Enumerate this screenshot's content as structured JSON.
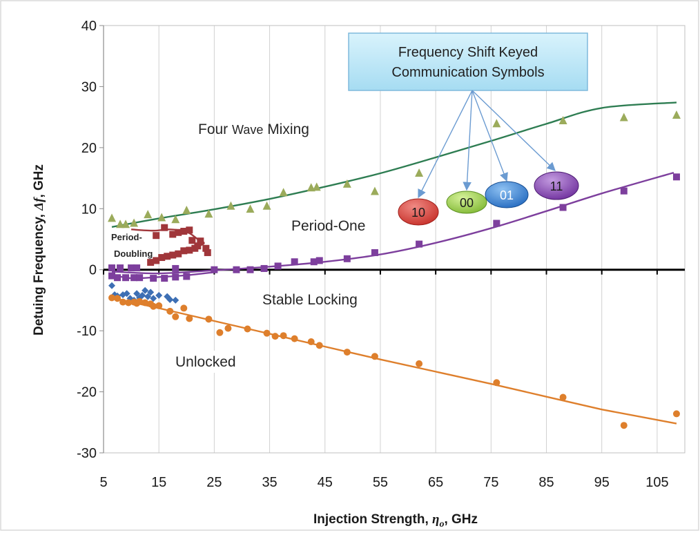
{
  "chart_data": {
    "type": "scatter",
    "xlabel_main": "Injection Strength, ",
    "xlabel_symbol": "η",
    "xlabel_sub": "o",
    "xlabel_unit": ", GHz",
    "ylabel_main": "Detuing Frequency, ",
    "ylabel_symbol": "Δf",
    "ylabel_unit": ", GHz",
    "xlim": [
      5,
      110
    ],
    "ylim": [
      -30,
      40
    ],
    "x_ticks": [
      5,
      15,
      25,
      35,
      45,
      55,
      65,
      75,
      85,
      95,
      105
    ],
    "y_ticks": [
      40,
      30,
      20,
      10,
      0,
      -10,
      -20,
      -30
    ],
    "grid": "vertical only",
    "legend": "none",
    "colors": {
      "four_wave_mixing": "#2e7d52",
      "four_wave_mixing_markers": "#9bab5b",
      "period_one": "#7d3f9d",
      "period_doubling": "#a0363a",
      "stable_locking": "#3d6fb4",
      "unlocked": "#de7f2c"
    },
    "series": [
      {
        "points": [
          [
            6.5,
            8.4
          ],
          [
            8,
            7.4
          ],
          [
            9,
            7.4
          ],
          [
            10.5,
            7.6
          ],
          [
            13,
            9
          ],
          [
            15.5,
            8.5
          ],
          [
            18,
            8.2
          ],
          [
            20,
            9.7
          ],
          [
            24,
            9.1
          ],
          [
            28,
            10.4
          ],
          [
            31.5,
            9.9
          ],
          [
            34.5,
            10.4
          ],
          [
            37.5,
            12.6
          ],
          [
            42.5,
            13.4
          ],
          [
            43.5,
            13.5
          ],
          [
            49,
            14
          ],
          [
            54,
            12.8
          ],
          [
            62,
            15.8
          ],
          [
            76,
            23.9
          ],
          [
            88,
            24.4
          ],
          [
            99,
            24.9
          ],
          [
            108.5,
            25.3
          ]
        ],
        "fit": [
          [
            6.5,
            7
          ],
          [
            15,
            8.4
          ],
          [
            25,
            9.9
          ],
          [
            35,
            11.6
          ],
          [
            45,
            13.6
          ],
          [
            55,
            15.8
          ],
          [
            65,
            18.4
          ],
          [
            75,
            21.1
          ],
          [
            85,
            23.9
          ],
          [
            95,
            26.5
          ],
          [
            108.5,
            27.4
          ]
        ]
      },
      {
        "points": [
          [
            6.5,
            0.3
          ],
          [
            8,
            0.3
          ],
          [
            10,
            0.3
          ],
          [
            11,
            0.3
          ],
          [
            18,
            0.2
          ],
          [
            25,
            0
          ],
          [
            29,
            0
          ],
          [
            31.5,
            0
          ],
          [
            34,
            0.2
          ],
          [
            36.5,
            0.6
          ],
          [
            39.5,
            1.3
          ],
          [
            43,
            1.3
          ],
          [
            44,
            1.5
          ],
          [
            49,
            1.8
          ],
          [
            54,
            2.8
          ],
          [
            62,
            4.2
          ],
          [
            76,
            7.6
          ],
          [
            88,
            10.2
          ],
          [
            99,
            12.9
          ],
          [
            108.5,
            15.2
          ]
        ],
        "fit": [
          [
            6.5,
            -0.3
          ],
          [
            15,
            -0.6
          ],
          [
            25,
            -0.1
          ],
          [
            35,
            0.5
          ],
          [
            45,
            1.3
          ],
          [
            55,
            2.5
          ],
          [
            65,
            4.4
          ],
          [
            75,
            6.8
          ],
          [
            85,
            9.6
          ],
          [
            95,
            12.5
          ],
          [
            108,
            15.9
          ]
        ]
      },
      {
        "points": [
          [
            6.5,
            -1
          ],
          [
            7.5,
            -1.3
          ],
          [
            9,
            -1.3
          ],
          [
            10.5,
            -1.3
          ],
          [
            11.5,
            -1.3
          ],
          [
            14,
            -1.4
          ],
          [
            16,
            -1.4
          ],
          [
            18,
            -1.2
          ],
          [
            20,
            -1.1
          ]
        ],
        "fit": [
          [
            6.5,
            -0.8
          ],
          [
            10,
            -1.4
          ],
          [
            15,
            -1.2
          ],
          [
            20,
            -0.9
          ],
          [
            25,
            -0.4
          ]
        ]
      },
      {
        "points": [
          [
            14.5,
            5.6
          ],
          [
            16,
            6.9
          ],
          [
            17.5,
            5.8
          ],
          [
            18.5,
            6.1
          ],
          [
            19.5,
            6.3
          ],
          [
            20.5,
            6.5
          ],
          [
            21,
            4.8
          ],
          [
            22,
            3.9
          ],
          [
            22.5,
            4.7
          ],
          [
            23.5,
            3.5
          ],
          [
            23.8,
            2.8
          ],
          [
            21.5,
            3.5
          ],
          [
            20.5,
            3.2
          ],
          [
            19.5,
            3.1
          ],
          [
            18.5,
            2.6
          ],
          [
            17.5,
            2.4
          ],
          [
            16.5,
            2.2
          ],
          [
            15.5,
            2
          ],
          [
            14.5,
            1.5
          ],
          [
            13.5,
            1.2
          ]
        ],
        "fit": [
          [
            10,
            6.6
          ],
          [
            14,
            6.4
          ],
          [
            17,
            6.6
          ],
          [
            20,
            6.2
          ],
          [
            22,
            5
          ],
          [
            23,
            4.2
          ],
          [
            19,
            3
          ],
          [
            16,
            2.3
          ],
          [
            13.5,
            1.3
          ]
        ]
      },
      {
        "points": [
          [
            6.5,
            -2.6
          ],
          [
            7,
            -4.1
          ],
          [
            7.5,
            -4.3
          ],
          [
            8.5,
            -4.1
          ],
          [
            9.2,
            -3.9
          ],
          [
            9.8,
            -4.7
          ],
          [
            10.5,
            -5
          ],
          [
            11,
            -3.9
          ],
          [
            11.5,
            -4.6
          ],
          [
            12,
            -4.2
          ],
          [
            12.5,
            -3.4
          ],
          [
            13,
            -4.4
          ],
          [
            13.5,
            -3.7
          ],
          [
            14,
            -4.7
          ],
          [
            15,
            -4.2
          ],
          [
            16.5,
            -4.4
          ],
          [
            17,
            -4.9
          ],
          [
            18,
            -5
          ]
        ]
      },
      {
        "points": [
          [
            6.5,
            -4.6
          ],
          [
            7.5,
            -4.7
          ],
          [
            8.5,
            -5.3
          ],
          [
            9.5,
            -5.4
          ],
          [
            10.5,
            -5.3
          ],
          [
            11,
            -5.5
          ],
          [
            11.5,
            -5.2
          ],
          [
            12.5,
            -5.4
          ],
          [
            13.5,
            -5.6
          ],
          [
            14,
            -6
          ],
          [
            15,
            -5.9
          ],
          [
            17,
            -6.8
          ],
          [
            18,
            -7.7
          ],
          [
            19.5,
            -6.3
          ],
          [
            20.5,
            -8
          ],
          [
            24,
            -8.1
          ],
          [
            26,
            -10.3
          ],
          [
            27.5,
            -9.6
          ],
          [
            31,
            -9.7
          ],
          [
            34.5,
            -10.4
          ],
          [
            36,
            -10.9
          ],
          [
            37.5,
            -10.8
          ],
          [
            39.5,
            -11.3
          ],
          [
            42.5,
            -11.8
          ],
          [
            44,
            -12.4
          ],
          [
            49,
            -13.5
          ],
          [
            54,
            -14.2
          ],
          [
            62,
            -15.4
          ],
          [
            76,
            -18.5
          ],
          [
            88,
            -20.9
          ],
          [
            99,
            -25.5
          ],
          [
            108.5,
            -23.6
          ]
        ],
        "fit": [
          [
            6.5,
            -4.6
          ],
          [
            15,
            -6.3
          ],
          [
            25,
            -8.4
          ],
          [
            35,
            -10.5
          ],
          [
            45,
            -12.6
          ],
          [
            55,
            -14.7
          ],
          [
            65,
            -16.7
          ],
          [
            75,
            -18.7
          ],
          [
            85,
            -20.8
          ],
          [
            95,
            -22.9
          ],
          [
            108.5,
            -25.2
          ]
        ]
      }
    ],
    "region_labels": {
      "four_wave_mixing_a": "Four ",
      "four_wave_mixing_b": "Wave",
      "four_wave_mixing_c": " Mixing",
      "period_one": "Period-One",
      "period_doubling_line1": "Period-",
      "period_doubling_line2": "Doubling",
      "stable_locking": "Stable Locking",
      "unlocked": "Unlocked"
    },
    "callout": {
      "line1": "Frequency Shift Keyed",
      "line2": "Communication Symbols",
      "box_color": "#bfe8f7",
      "arrow_color": "#6b9bd1"
    },
    "symbols": [
      {
        "label": "10",
        "color": "#d93a34"
      },
      {
        "label": "00",
        "color": "#8cc63f"
      },
      {
        "label": "01",
        "color": "#2f7bd2"
      },
      {
        "label": "11",
        "color": "#7a3aa8"
      }
    ]
  }
}
